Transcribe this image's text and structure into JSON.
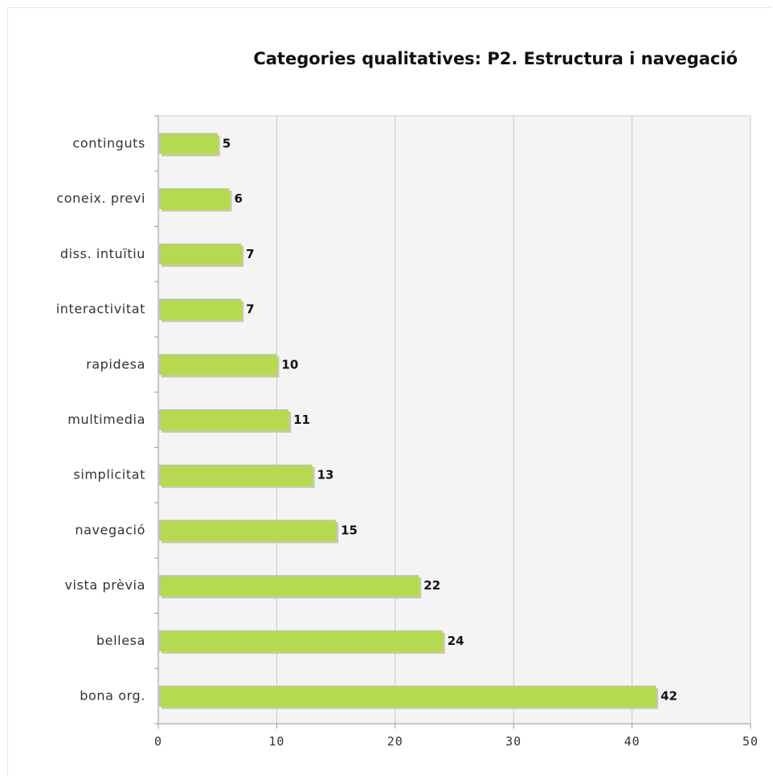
{
  "chart_data": {
    "type": "bar",
    "orientation": "horizontal",
    "title": "Categories qualitatives: P2. Estructura i navegació",
    "categories": [
      "continguts",
      "coneix. previ",
      "diss. intuïtiu",
      "interactivitat",
      "rapidesa",
      "multimedia",
      "simplicitat",
      "navegació",
      "vista prèvia",
      "bellesa",
      "bona org."
    ],
    "values": [
      5,
      6,
      7,
      7,
      10,
      11,
      13,
      15,
      22,
      24,
      42
    ],
    "value_labels": [
      "5",
      "6",
      "7",
      "7",
      "10",
      "11",
      "13",
      "15",
      "22",
      "24",
      "42"
    ],
    "xlim": [
      0,
      50
    ],
    "xticks": [
      0,
      10,
      20,
      30,
      40,
      50
    ],
    "xtick_labels": [
      "0",
      "10",
      "20",
      "30",
      "40",
      "50"
    ],
    "xlabel": "",
    "ylabel": "",
    "grid": "vertical",
    "legend": "none",
    "colors": {
      "bar": "#b5d94f",
      "bar_shadow": "#c4c4c4",
      "plot_background": "#f4f4f4",
      "grid": "#c8c8c8",
      "axis": "#999999"
    }
  }
}
